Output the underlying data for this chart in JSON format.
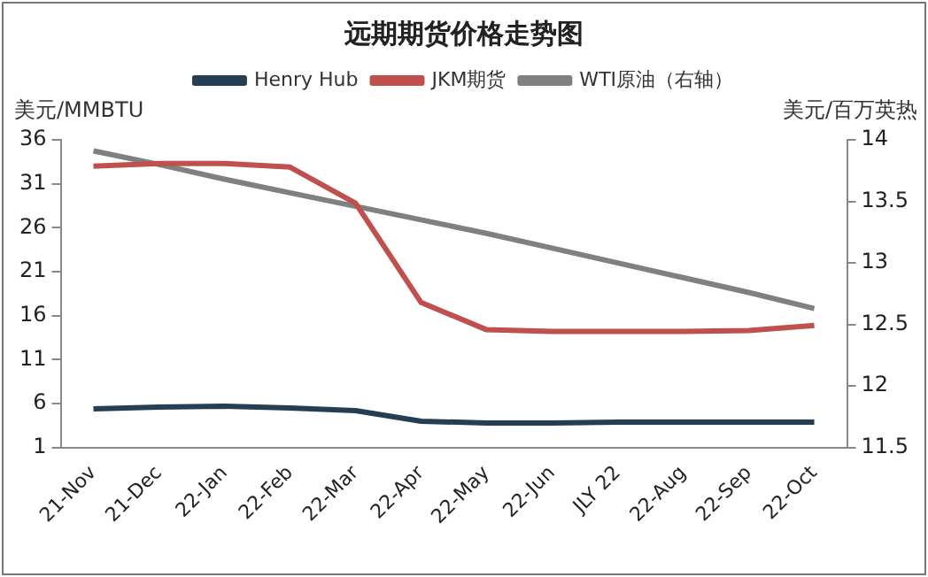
{
  "chart_data": {
    "type": "line",
    "title": "远期期货价格走势图",
    "ylabel": "美元/MMBTU",
    "y2label": "美元/百万英热",
    "categories": [
      "21-Nov",
      "21-Dec",
      "22-Jan",
      "22-Feb",
      "22-Mar",
      "22-Apr",
      "22-May",
      "22-Jun",
      "JLY 22",
      "22-Aug",
      "22-Sep",
      "22-Oct"
    ],
    "series": [
      {
        "name": "Henry Hub",
        "color": "#243f54",
        "values": [
          5.4,
          5.6,
          5.7,
          5.5,
          5.2,
          4.0,
          3.8,
          3.8,
          3.9,
          3.9,
          3.9,
          3.9
        ]
      },
      {
        "name": "JKM期货",
        "color": "#c0504d",
        "values": [
          33.0,
          33.3,
          33.3,
          32.9,
          28.8,
          17.5,
          14.4,
          14.2,
          14.2,
          14.2,
          14.3,
          14.9
        ]
      },
      {
        "name": "WTI原油（右轴）",
        "color": "#808080",
        "axis": "y2",
        "values": [
          13.91,
          13.8,
          13.68,
          13.57,
          13.46,
          13.35,
          13.24,
          13.12,
          13.0,
          12.88,
          12.76,
          12.63
        ]
      }
    ],
    "ylim": [
      1,
      36
    ],
    "yticks": [
      1,
      6,
      11,
      16,
      21,
      26,
      31,
      36
    ],
    "y2lim": [
      11.5,
      14
    ],
    "y2ticks": [
      11.5,
      12,
      12.5,
      13,
      13.5,
      14
    ],
    "grid": false,
    "legend": "top",
    "marker": "none",
    "line_style": "solid"
  }
}
